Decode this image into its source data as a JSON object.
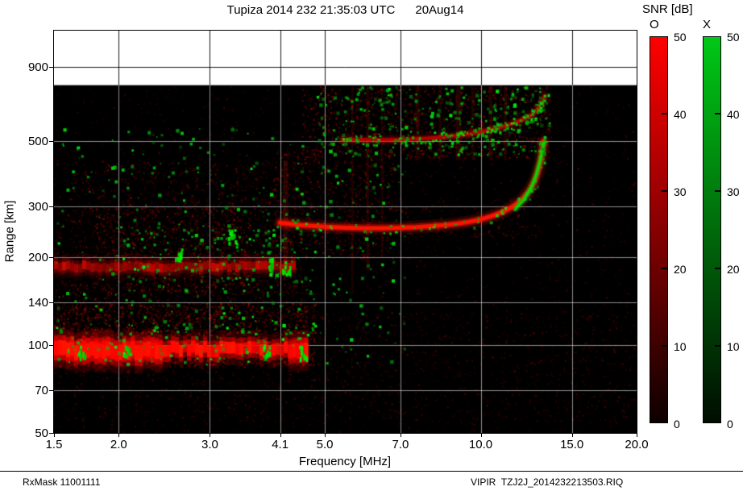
{
  "header": {
    "title": "Tupiza 2014 232 21:35:03 UTC      20Aug14"
  },
  "footer": {
    "left": "RxMask 11001111",
    "right": "VIPIR  TZJ2J_2014232213503.RIQ"
  },
  "colorbar_panel": {
    "title": "SNR [dB]",
    "min": 0,
    "max": 50,
    "tick_labels": [
      "50",
      "40",
      "30",
      "20",
      "10",
      "0"
    ],
    "bars": [
      {
        "label": "O",
        "polarization": "O-mode",
        "color_top": "#ff0000",
        "color_bottom": "#0d0000"
      },
      {
        "label": "X",
        "polarization": "X-mode",
        "color_top": "#00c816",
        "color_bottom": "#000d00"
      }
    ]
  },
  "chart_data": {
    "type": "heatmap",
    "title": "Tupiza 2014 232 21:35:03 UTC      20Aug14",
    "station": "Tupiza",
    "xlabel": "Frequency [MHz]",
    "ylabel": "Range [km]",
    "x_scale": "log",
    "y_scale": "log",
    "xlim": [
      1.5,
      20
    ],
    "ylim": [
      50,
      1200
    ],
    "x_ticks": [
      1.5,
      2.0,
      3.0,
      4.1,
      5.0,
      7.0,
      10.0,
      15.0,
      20.0
    ],
    "x_tick_labels": [
      "1.5",
      "2.0",
      "3.0",
      "4.1",
      "5.0",
      "7.0",
      "10.0",
      "15.0",
      "20.0"
    ],
    "y_ticks": [
      50,
      70,
      100,
      140,
      200,
      300,
      500,
      900
    ],
    "y_tick_labels": [
      "50",
      "70",
      "100",
      "140",
      "200",
      "300",
      "500",
      "900"
    ],
    "grid": true,
    "data_ceiling_km": 780,
    "background_color": "#000000",
    "no_data_color": "#ffffff",
    "echo_traces": [
      {
        "name": "F2-layer O-mode first hop",
        "mode": "O",
        "color": "#ff1400",
        "width": 5,
        "alpha": 1,
        "speckle": 60,
        "points_f_mhz_range_km": [
          [
            4.1,
            263
          ],
          [
            4.5,
            258
          ],
          [
            5.0,
            255
          ],
          [
            5.5,
            253
          ],
          [
            6.0,
            252
          ],
          [
            6.5,
            252
          ],
          [
            7.0,
            253
          ],
          [
            7.5,
            254
          ],
          [
            8.0,
            256
          ],
          [
            8.5,
            258
          ],
          [
            9.0,
            261
          ],
          [
            9.5,
            265
          ],
          [
            10.0,
            270
          ],
          [
            10.5,
            277
          ],
          [
            11.0,
            286
          ],
          [
            11.5,
            298
          ],
          [
            12.0,
            315
          ],
          [
            12.4,
            338
          ],
          [
            12.7,
            365
          ],
          [
            12.9,
            395
          ],
          [
            13.05,
            430
          ],
          [
            13.15,
            465
          ],
          [
            13.22,
            500
          ]
        ]
      },
      {
        "name": "F2-layer X-mode first hop",
        "mode": "X",
        "color": "#00dd00",
        "width": 3,
        "alpha": 0.95,
        "points_f_mhz_range_km": [
          [
            11.7,
            295
          ],
          [
            12.1,
            315
          ],
          [
            12.5,
            345
          ],
          [
            12.8,
            385
          ],
          [
            13.0,
            425
          ],
          [
            13.15,
            465
          ],
          [
            13.25,
            495
          ]
        ]
      },
      {
        "name": "F2-layer second hop",
        "mode": "O",
        "color": "#d80000",
        "width": 4,
        "alpha": 0.75,
        "speckle": 130,
        "points_f_mhz_range_km": [
          [
            5.4,
            508
          ],
          [
            6.0,
            506
          ],
          [
            6.6,
            506
          ],
          [
            7.2,
            508
          ],
          [
            7.8,
            512
          ],
          [
            8.4,
            517
          ],
          [
            9.0,
            524
          ],
          [
            9.6,
            532
          ],
          [
            10.2,
            543
          ],
          [
            10.8,
            556
          ],
          [
            11.4,
            572
          ],
          [
            12.0,
            592
          ],
          [
            12.5,
            615
          ],
          [
            12.9,
            645
          ],
          [
            13.15,
            680
          ],
          [
            13.3,
            715
          ]
        ]
      }
    ],
    "layers": [
      {
        "name": "Es-layer",
        "f_mhz": [
          1.5,
          4.62
        ],
        "range_km": 97,
        "half_thickness_km": 5,
        "intensity": 1.0
      },
      {
        "name": "Es-left-enhancement",
        "f_mhz": [
          1.5,
          2.4
        ],
        "range_km": 96,
        "half_thickness_km": 6,
        "intensity": 1.15
      },
      {
        "name": "Es-right-blob",
        "f_mhz": [
          4.25,
          4.62
        ],
        "range_km": 96,
        "half_thickness_km": 6,
        "intensity": 1.1
      },
      {
        "name": "valley-echo",
        "f_mhz": [
          1.5,
          4.35
        ],
        "range_km": 186,
        "half_thickness_km": 7,
        "intensity": 0.5
      }
    ],
    "noise_regions": [
      {
        "f_mhz": [
          1.5,
          20
        ],
        "range_km": [
          50,
          778
        ],
        "density": 0.3,
        "intensity": 0.2
      },
      {
        "f_mhz": [
          1.5,
          20
        ],
        "range_km": [
          55,
          130
        ],
        "density": 0.5,
        "intensity": 0.22
      },
      {
        "f_mhz": [
          1.5,
          4.8
        ],
        "range_km": [
          85,
          140
        ],
        "density": 1.6,
        "intensity": 0.5
      },
      {
        "f_mhz": [
          1.5,
          4.6
        ],
        "range_km": [
          120,
          165
        ],
        "density": 0.9,
        "intensity": 0.32
      },
      {
        "f_mhz": [
          1.5,
          4.5
        ],
        "range_km": [
          150,
          430
        ],
        "density": 0.8,
        "intensity": 0.3
      },
      {
        "f_mhz": [
          1.8,
          3.6
        ],
        "range_km": [
          150,
          300
        ],
        "density": 1.0,
        "intensity": 0.4
      },
      {
        "f_mhz": [
          3.95,
          6.8
        ],
        "range_km": [
          200,
          470
        ],
        "density": 1.0,
        "intensity": 0.36
      },
      {
        "f_mhz": [
          4.5,
          13.6
        ],
        "range_km": [
          440,
          778
        ],
        "density": 1.3,
        "intensity": 0.4
      },
      {
        "f_mhz": [
          6.8,
          13.0
        ],
        "range_km": [
          235,
          305
        ],
        "density": 0.7,
        "intensity": 0.3
      }
    ],
    "rfi_streaks": [
      {
        "f_mhz": 5.65,
        "range_km": [
          150,
          770
        ],
        "alpha": 0.1,
        "width": 3
      },
      {
        "f_mhz": 6.05,
        "range_km": [
          180,
          770
        ],
        "alpha": 0.1,
        "width": 4
      },
      {
        "f_mhz": 6.45,
        "range_km": [
          200,
          770
        ],
        "alpha": 0.09,
        "width": 3
      },
      {
        "f_mhz": 7.55,
        "range_km": [
          430,
          770
        ],
        "alpha": 0.12,
        "width": 5
      },
      {
        "f_mhz": 8.35,
        "range_km": [
          430,
          770
        ],
        "alpha": 0.1,
        "width": 4
      },
      {
        "f_mhz": 9.05,
        "range_km": [
          430,
          770
        ],
        "alpha": 0.12,
        "width": 6
      },
      {
        "f_mhz": 9.65,
        "range_km": [
          430,
          770
        ],
        "alpha": 0.1,
        "width": 4
      },
      {
        "f_mhz": 10.45,
        "range_km": [
          430,
          770
        ],
        "alpha": 0.11,
        "width": 5
      },
      {
        "f_mhz": 11.15,
        "range_km": [
          430,
          770
        ],
        "alpha": 0.1,
        "width": 4
      },
      {
        "f_mhz": 4.2,
        "range_km": [
          190,
          430
        ],
        "alpha": 0.14,
        "width": 6
      }
    ],
    "green_speckle_regions": [
      {
        "f_mhz": [
          1.5,
          7.2
        ],
        "range_km": [
          85,
          560
        ],
        "count": 380,
        "size": 3
      },
      {
        "f_mhz": [
          4.8,
          13.6
        ],
        "range_km": [
          450,
          775
        ],
        "count": 300,
        "size": 3
      },
      {
        "f_mhz": [
          1.5,
          4.8
        ],
        "range_km": [
          88,
          122
        ],
        "count": 90,
        "size": 3
      },
      {
        "f_mhz": [
          2.0,
          4.6
        ],
        "range_km": [
          165,
          260
        ],
        "count": 120,
        "size": 3
      }
    ],
    "green_clusters": [
      [
        1.69,
        96
      ],
      [
        2.07,
        97
      ],
      [
        3.85,
        96
      ],
      [
        4.53,
        95
      ],
      [
        3.95,
        190
      ],
      [
        4.2,
        186
      ],
      [
        2.6,
        207
      ],
      [
        3.3,
        238
      ]
    ]
  }
}
